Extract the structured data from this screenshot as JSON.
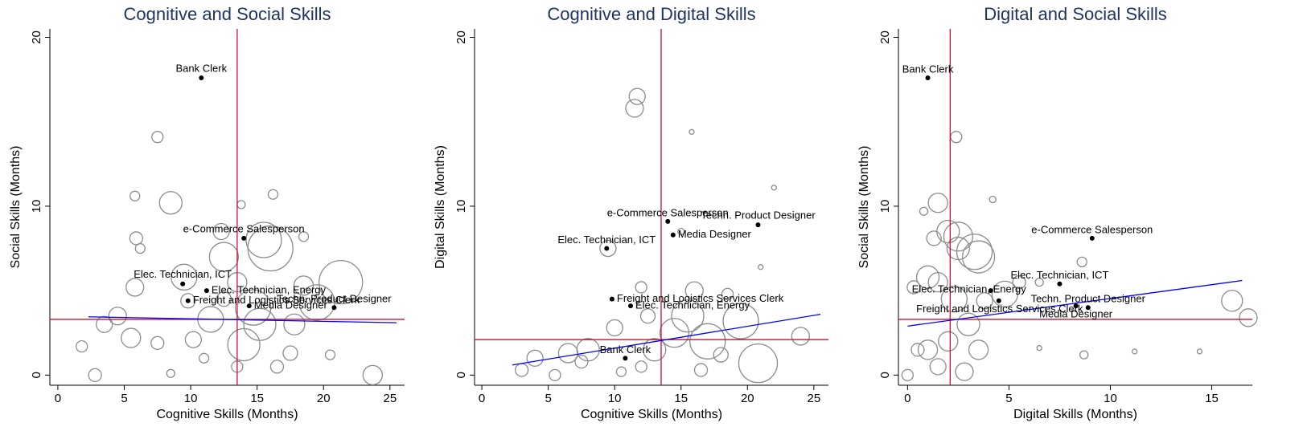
{
  "chart_data": [
    {
      "type": "scatter",
      "title": "Cognitive and Social Skills",
      "x_label": "Cognitive Skills (Months)",
      "y_label": "Social Skills (Months)",
      "xlim": [
        -0.6,
        26.1
      ],
      "ylim": [
        -0.6,
        20.5
      ],
      "xticks": [
        0,
        5,
        10,
        15,
        20,
        25
      ],
      "yticks": [
        0,
        10,
        20
      ],
      "bubbles": {
        "color": "#8c8c8c",
        "x": [
          8.5,
          7.5,
          5.8,
          5.9,
          6.2,
          5.8,
          9.5,
          9.8,
          4.5,
          3.5,
          1.8,
          2.8,
          5.5,
          7.5,
          8.5,
          10.2,
          11.5,
          12.5,
          12.3,
          13.5,
          14.7,
          15.2,
          15.5,
          16.0,
          16.2,
          17.8,
          18.5,
          19.5,
          21.3,
          23.7,
          20.5,
          17.5,
          13.5,
          14.0,
          16.5,
          11.0,
          12.5,
          18.5,
          13.8
        ],
        "y": [
          10.2,
          14.1,
          10.6,
          8.1,
          7.5,
          5.2,
          5.8,
          4.4,
          3.5,
          3.0,
          1.7,
          0.0,
          2.2,
          1.9,
          0.1,
          2.1,
          3.3,
          7.0,
          8.5,
          5.5,
          4.0,
          3.0,
          8.0,
          7.5,
          10.7,
          3.0,
          5.3,
          4.3,
          5.5,
          0.0,
          1.2,
          1.3,
          0.5,
          1.8,
          0.5,
          1.0,
          4.5,
          8.2,
          10.1
        ],
        "sizes": [
          14,
          7,
          6,
          8,
          6,
          11,
          16,
          9,
          11,
          10,
          7,
          8,
          12,
          8,
          5,
          10,
          16,
          18,
          10,
          12,
          22,
          20,
          22,
          28,
          6,
          13,
          12,
          22,
          27,
          12,
          6,
          9,
          7,
          20,
          8,
          6,
          9,
          6,
          5
        ]
      },
      "points": {
        "color": "#000000",
        "labels": [
          "Bank Clerk",
          "e-Commerce Salesperson",
          "Elec. Technician, ICT",
          "Elec. Technician, Energy",
          "Freight and Logistics Services Clerk",
          "Media Designer",
          "Techn. Product Designer"
        ],
        "x": [
          10.8,
          14.0,
          9.4,
          11.2,
          9.8,
          14.4,
          20.8
        ],
        "y": [
          17.6,
          8.1,
          5.4,
          5.0,
          4.4,
          4.1,
          4.0
        ]
      },
      "ref_lines": {
        "x": 13.5,
        "y": 3.3,
        "color": "#c8102e"
      },
      "fit_line": {
        "x": [
          2.3,
          25.5
        ],
        "y": [
          3.45,
          3.1
        ],
        "color": "#0000ff"
      }
    },
    {
      "type": "scatter",
      "title": "Cognitive and Digital Skills",
      "x_label": "Cognitive Skills (Months)",
      "y_label": "Digital Skills (Months)",
      "xlim": [
        -0.55,
        26.1
      ],
      "ylim": [
        -0.6,
        20.5
      ],
      "xticks": [
        0,
        5,
        10,
        15,
        20,
        25
      ],
      "yticks": [
        0,
        10,
        20
      ],
      "bubbles": {
        "color": "#8c8c8c",
        "x": [
          11.7,
          11.5,
          9.5,
          12.0,
          15.5,
          16.0,
          17.0,
          19.5,
          14.5,
          13.0,
          10.0,
          8.0,
          6.5,
          4.0,
          3.0,
          5.5,
          7.5,
          12.0,
          20.8,
          24.0,
          21.0,
          22.0,
          15.8,
          18.5,
          15.0,
          12.5,
          16.5,
          18.0,
          10.5
        ],
        "y": [
          16.5,
          15.8,
          7.5,
          5.2,
          3.5,
          5.0,
          2.0,
          3.2,
          2.5,
          1.5,
          2.8,
          1.5,
          1.3,
          1.0,
          0.3,
          0.0,
          0.8,
          0.5,
          0.7,
          2.3,
          6.4,
          11.1,
          14.4,
          4.8,
          8.5,
          3.5,
          0.3,
          1.2,
          0.2
        ],
        "sizes": [
          10,
          11,
          10,
          7,
          20,
          11,
          22,
          22,
          18,
          14,
          10,
          14,
          12,
          10,
          8,
          7,
          8,
          7,
          24,
          11,
          3,
          3,
          3,
          7,
          4,
          9,
          8,
          9,
          6
        ]
      },
      "points": {
        "color": "#000000",
        "labels": [
          "e-Commerce Salesperson",
          "Techn. Product Designer",
          "Media Designer",
          "Elec. Technician, ICT",
          "Freight and Logistics Services Clerk",
          "Elec. Technician, Energy",
          "Bank Clerk"
        ],
        "x": [
          14.0,
          20.8,
          14.4,
          9.4,
          9.8,
          11.2,
          10.8
        ],
        "y": [
          9.1,
          8.9,
          8.3,
          7.5,
          4.5,
          4.1,
          1.0
        ]
      },
      "ref_lines": {
        "x": 13.5,
        "y": 2.1,
        "color": "#c8102e"
      },
      "fit_line": {
        "x": [
          2.3,
          25.5
        ],
        "y": [
          0.6,
          3.6
        ],
        "color": "#0000ff"
      }
    },
    {
      "type": "scatter",
      "title": "Digital and Social Skills",
      "x_label": "Digital Skills (Months)",
      "y_label": "Social Skills (Months)",
      "xlim": [
        -0.45,
        17.0
      ],
      "ylim": [
        -0.6,
        20.5
      ],
      "xticks": [
        0,
        5,
        10,
        15
      ],
      "yticks": [
        0,
        10,
        20
      ],
      "bubbles": {
        "color": "#8c8c8c",
        "x": [
          2.4,
          0.8,
          1.5,
          1.3,
          2.5,
          2.5,
          3.5,
          3.3,
          1.0,
          1.5,
          0.3,
          2.3,
          3.8,
          3.0,
          2.0,
          1.0,
          1.5,
          0.0,
          0.5,
          3.5,
          4.8,
          5.5,
          6.5,
          8.6,
          8.7,
          16.0,
          16.8,
          4.2,
          2.0,
          6.5,
          11.2,
          14.4,
          2.8
        ],
        "y": [
          14.1,
          9.7,
          10.2,
          8.1,
          8.2,
          7.5,
          7.0,
          7.3,
          5.8,
          5.5,
          5.2,
          4.5,
          4.4,
          3.0,
          2.0,
          1.5,
          0.5,
          0.0,
          1.5,
          1.5,
          4.8,
          5.5,
          5.5,
          6.7,
          1.2,
          4.4,
          3.4,
          10.4,
          8.5,
          1.6,
          1.4,
          1.4,
          0.2
        ],
        "sizes": [
          7,
          5,
          12,
          9,
          18,
          14,
          20,
          22,
          14,
          12,
          8,
          16,
          10,
          14,
          12,
          12,
          10,
          7,
          8,
          12,
          16,
          8,
          5,
          6,
          5,
          13,
          11,
          4,
          14,
          3,
          3,
          3,
          11
        ]
      },
      "points": {
        "color": "#000000",
        "labels": [
          "Bank Clerk",
          "e-Commerce Salesperson",
          "Elec. Technician, ICT",
          "Elec. Technician, Energy",
          "Freight and Logistics Services Clerk",
          "Techn. Product Designer",
          "Media Designer"
        ],
        "x": [
          1.0,
          9.1,
          7.5,
          4.1,
          4.5,
          8.9,
          8.3
        ],
        "y": [
          17.6,
          8.1,
          5.4,
          5.0,
          4.4,
          4.0,
          4.1
        ]
      },
      "ref_lines": {
        "x": 2.1,
        "y": 3.3,
        "color": "#c8102e"
      },
      "fit_line": {
        "x": [
          0.0,
          16.5
        ],
        "y": [
          2.9,
          5.6
        ],
        "color": "#0000ff"
      }
    }
  ]
}
